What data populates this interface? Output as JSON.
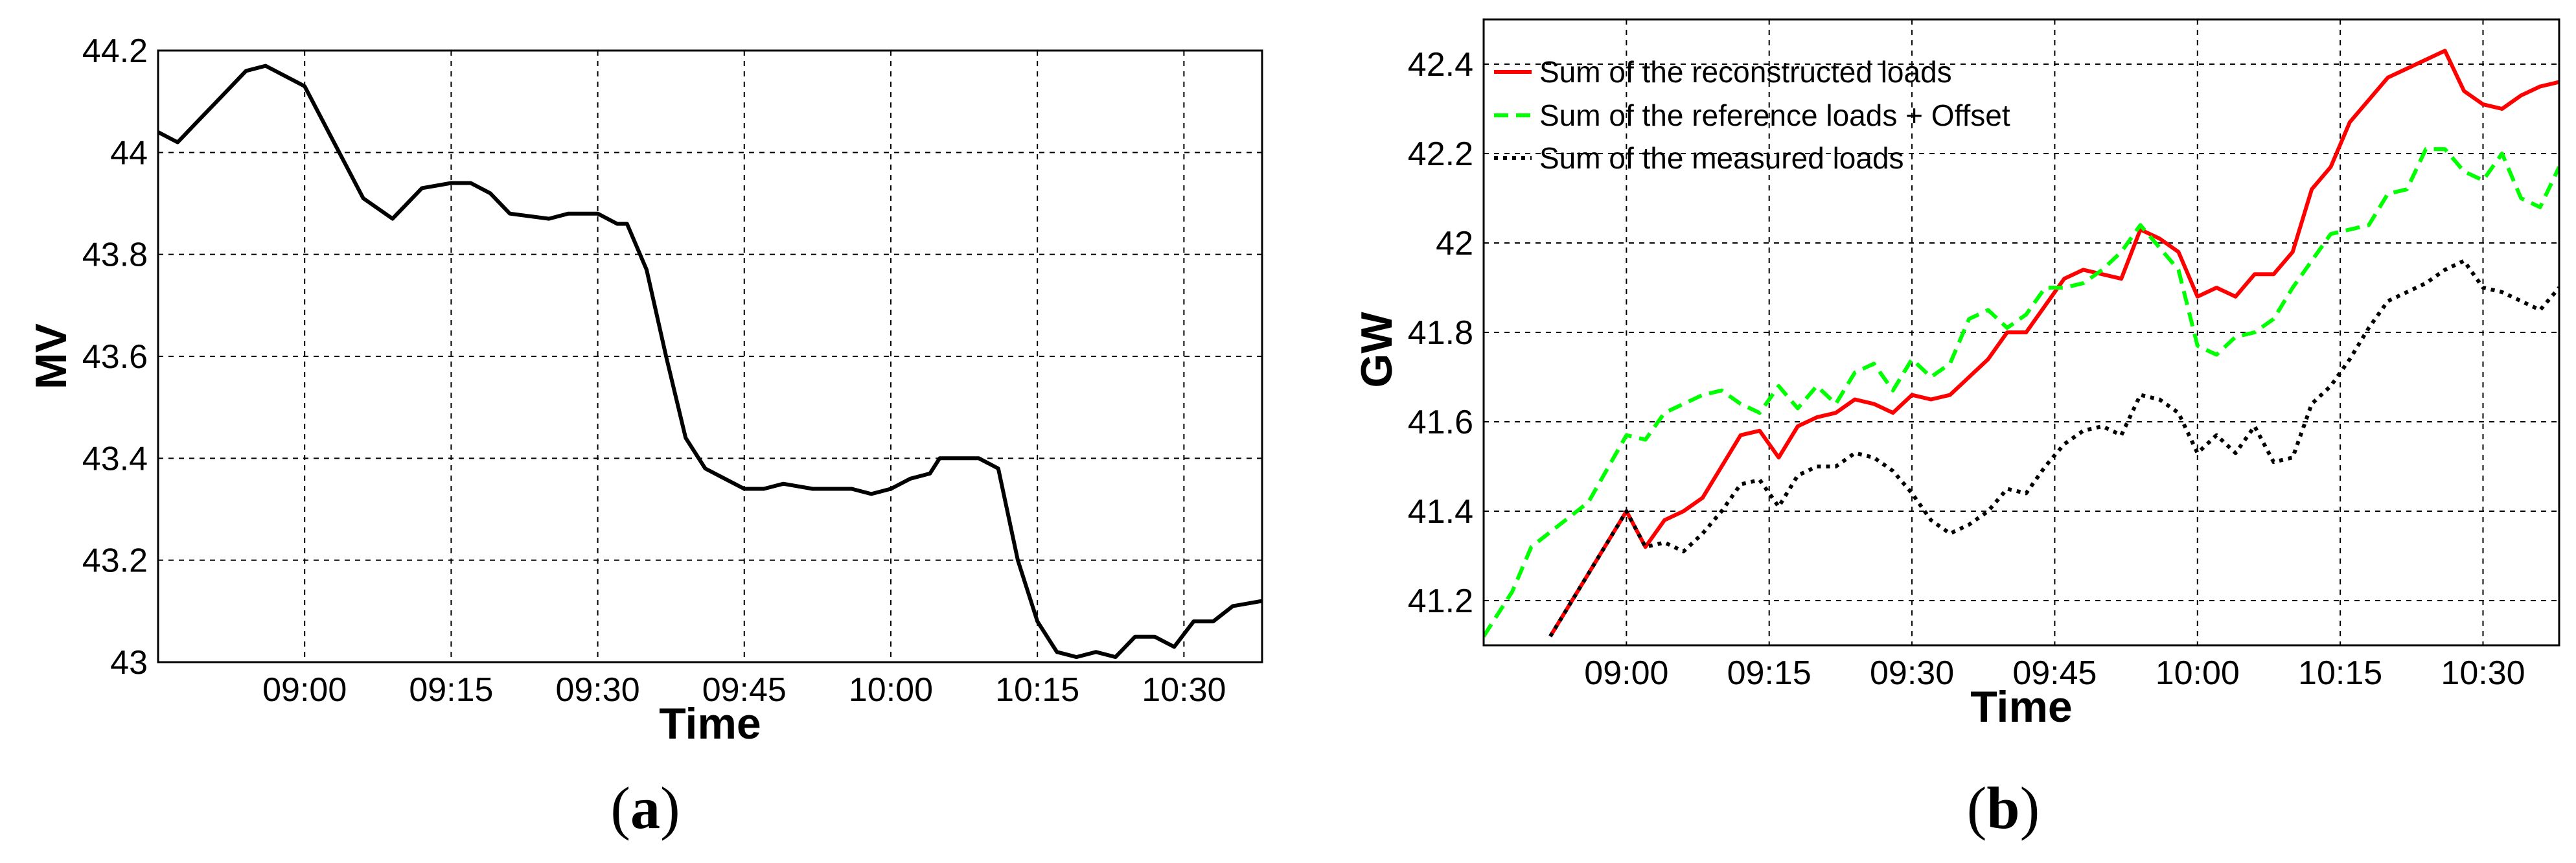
{
  "chart_data": [
    {
      "panel": "a",
      "type": "line",
      "xlabel": "Time",
      "ylabel": "MV",
      "ylim": [
        43,
        44.2
      ],
      "xlim": [
        "08:45",
        "10:38"
      ],
      "x_ticks": [
        "09:00",
        "09:15",
        "09:30",
        "09:45",
        "10:00",
        "10:15",
        "10:30"
      ],
      "y_ticks": [
        "43",
        "43.2",
        "43.4",
        "43.6",
        "43.8",
        "44",
        "44.2"
      ],
      "grid": true,
      "series": [
        {
          "name": "",
          "color": "#000000",
          "style": "solid",
          "x": [
            "08:45",
            "08:47",
            "08:49",
            "08:51",
            "08:54",
            "08:56",
            "08:59",
            "09:00",
            "09:03",
            "09:06",
            "09:09",
            "09:12",
            "09:15",
            "09:17",
            "09:19",
            "09:21",
            "09:25",
            "09:27",
            "09:30",
            "09:32",
            "09:33",
            "09:35",
            "09:37",
            "09:39",
            "09:41",
            "09:43",
            "09:45",
            "09:47",
            "09:49",
            "09:52",
            "09:54",
            "09:56",
            "09:58",
            "10:00",
            "10:02",
            "10:04",
            "10:05",
            "10:07",
            "10:09",
            "10:11",
            "10:13",
            "10:15",
            "10:17",
            "10:19",
            "10:21",
            "10:23",
            "10:25",
            "10:27",
            "10:29",
            "10:31",
            "10:33",
            "10:35",
            "10:38"
          ],
          "values": [
            44.04,
            44.02,
            44.06,
            44.1,
            44.16,
            44.17,
            44.14,
            44.13,
            44.02,
            43.91,
            43.87,
            43.93,
            43.94,
            43.94,
            43.92,
            43.88,
            43.87,
            43.88,
            43.88,
            43.86,
            43.86,
            43.77,
            43.6,
            43.44,
            43.38,
            43.36,
            43.34,
            43.34,
            43.35,
            43.34,
            43.34,
            43.34,
            43.33,
            43.34,
            43.36,
            43.37,
            43.4,
            43.4,
            43.4,
            43.38,
            43.2,
            43.08,
            43.02,
            43.01,
            43.02,
            43.01,
            43.05,
            43.05,
            43.03,
            43.08,
            43.08,
            43.11,
            43.12
          ]
        }
      ]
    },
    {
      "panel": "b",
      "type": "line",
      "xlabel": "Time",
      "ylabel": "GW",
      "ylim": [
        41.1,
        42.5
      ],
      "xlim": [
        "08:45",
        "10:38"
      ],
      "x_ticks": [
        "09:00",
        "09:15",
        "09:30",
        "09:45",
        "10:00",
        "10:15",
        "10:30"
      ],
      "y_ticks": [
        "41.2",
        "41.4",
        "41.6",
        "41.8",
        "42",
        "42.2",
        "42.4"
      ],
      "grid": true,
      "legend_position": "top-left",
      "series": [
        {
          "name": "Sum of the reconstructed loads",
          "color": "#ff0000",
          "style": "solid",
          "x": [
            "08:52",
            "08:56",
            "09:00",
            "09:02",
            "09:04",
            "09:06",
            "09:08",
            "09:10",
            "09:12",
            "09:14",
            "09:16",
            "09:18",
            "09:20",
            "09:22",
            "09:24",
            "09:26",
            "09:28",
            "09:30",
            "09:32",
            "09:34",
            "09:36",
            "09:38",
            "09:40",
            "09:42",
            "09:44",
            "09:46",
            "09:48",
            "09:50",
            "09:52",
            "09:54",
            "09:56",
            "09:58",
            "10:00",
            "10:02",
            "10:04",
            "10:06",
            "10:08",
            "10:10",
            "10:12",
            "10:14",
            "10:16",
            "10:18",
            "10:20",
            "10:22",
            "10:24",
            "10:26",
            "10:28",
            "10:30",
            "10:32",
            "10:34",
            "10:36",
            "10:38"
          ],
          "values": [
            41.12,
            41.26,
            41.4,
            41.32,
            41.38,
            41.4,
            41.43,
            41.5,
            41.57,
            41.58,
            41.52,
            41.59,
            41.61,
            41.62,
            41.65,
            41.64,
            41.62,
            41.66,
            41.65,
            41.66,
            41.7,
            41.74,
            41.8,
            41.8,
            41.86,
            41.92,
            41.94,
            41.93,
            41.92,
            42.03,
            42.01,
            41.98,
            41.88,
            41.9,
            41.88,
            41.93,
            41.93,
            41.98,
            42.12,
            42.17,
            42.27,
            42.32,
            42.37,
            42.39,
            42.41,
            42.43,
            42.34,
            42.31,
            42.3,
            42.33,
            42.35,
            42.36
          ]
        },
        {
          "name": "Sum of the reference loads + Offset",
          "color": "#00ff00",
          "style": "dashed",
          "x": [
            "08:45",
            "08:48",
            "08:50",
            "08:53",
            "08:56",
            "09:00",
            "09:02",
            "09:04",
            "09:06",
            "09:08",
            "09:10",
            "09:12",
            "09:14",
            "09:16",
            "09:18",
            "09:20",
            "09:22",
            "09:24",
            "09:26",
            "09:28",
            "09:30",
            "09:32",
            "09:34",
            "09:36",
            "09:38",
            "09:40",
            "09:42",
            "09:44",
            "09:46",
            "09:48",
            "09:50",
            "09:52",
            "09:54",
            "09:56",
            "09:58",
            "10:00",
            "10:02",
            "10:04",
            "10:06",
            "10:08",
            "10:10",
            "10:12",
            "10:14",
            "10:16",
            "10:18",
            "10:20",
            "10:22",
            "10:24",
            "10:26",
            "10:28",
            "10:30",
            "10:32",
            "10:34",
            "10:36",
            "10:38"
          ],
          "values": [
            41.12,
            41.22,
            41.32,
            41.37,
            41.42,
            41.57,
            41.56,
            41.62,
            41.64,
            41.66,
            41.67,
            41.64,
            41.62,
            41.68,
            41.63,
            41.68,
            41.64,
            41.71,
            41.73,
            41.67,
            41.74,
            41.7,
            41.73,
            41.83,
            41.85,
            41.81,
            41.84,
            41.9,
            41.9,
            41.91,
            41.94,
            41.98,
            42.04,
            41.99,
            41.94,
            41.77,
            41.75,
            41.79,
            41.8,
            41.83,
            41.9,
            41.96,
            42.02,
            42.03,
            42.04,
            42.11,
            42.12,
            42.21,
            42.21,
            42.16,
            42.14,
            42.2,
            42.1,
            42.08,
            42.17
          ]
        },
        {
          "name": "Sum of the measured loads",
          "color": "#000000",
          "style": "dotted",
          "x": [
            "08:52",
            "08:56",
            "09:00",
            "09:02",
            "09:04",
            "09:06",
            "09:08",
            "09:10",
            "09:12",
            "09:14",
            "09:16",
            "09:18",
            "09:20",
            "09:22",
            "09:24",
            "09:26",
            "09:28",
            "09:30",
            "09:32",
            "09:34",
            "09:36",
            "09:38",
            "09:40",
            "09:42",
            "09:44",
            "09:46",
            "09:48",
            "09:50",
            "09:52",
            "09:54",
            "09:56",
            "09:58",
            "10:00",
            "10:02",
            "10:04",
            "10:06",
            "10:08",
            "10:10",
            "10:12",
            "10:14",
            "10:16",
            "10:18",
            "10:20",
            "10:22",
            "10:24",
            "10:26",
            "10:28",
            "10:30",
            "10:32",
            "10:34",
            "10:36",
            "10:38"
          ],
          "values": [
            41.12,
            41.26,
            41.4,
            41.32,
            41.33,
            41.31,
            41.35,
            41.4,
            41.46,
            41.47,
            41.41,
            41.48,
            41.5,
            41.5,
            41.53,
            41.52,
            41.49,
            41.44,
            41.38,
            41.35,
            41.37,
            41.4,
            41.45,
            41.44,
            41.5,
            41.55,
            41.58,
            41.59,
            41.57,
            41.66,
            41.65,
            41.62,
            41.53,
            41.57,
            41.53,
            41.59,
            41.51,
            41.52,
            41.64,
            41.68,
            41.74,
            41.81,
            41.87,
            41.89,
            41.91,
            41.94,
            41.96,
            41.9,
            41.89,
            41.87,
            41.85,
            41.9
          ]
        }
      ]
    }
  ],
  "panel_labels": {
    "a": {
      "open": "(",
      "letter": "a",
      "close": ")"
    },
    "b": {
      "open": "(",
      "letter": "b",
      "close": ")"
    }
  }
}
